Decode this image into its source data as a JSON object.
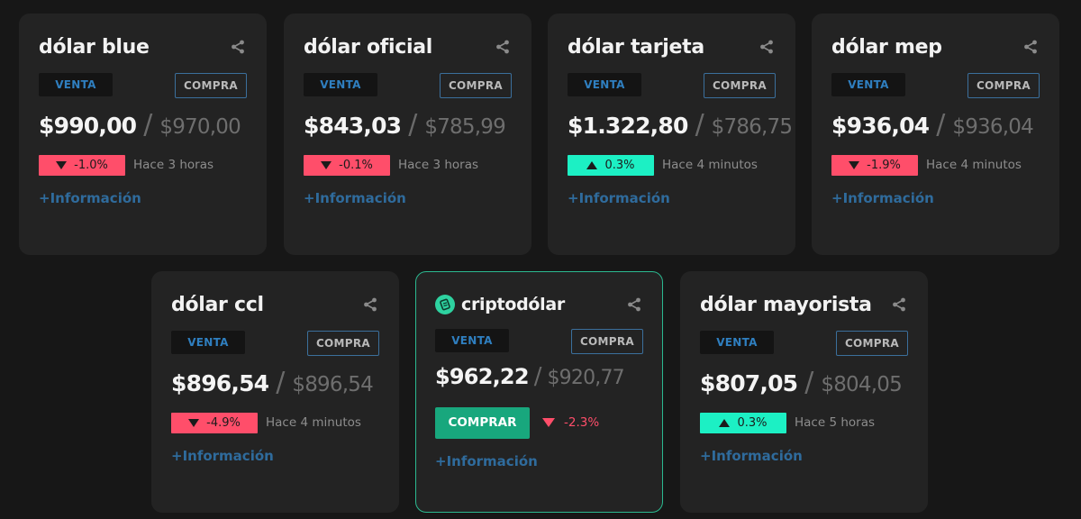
{
  "cards": [
    {
      "title": "dólar blue",
      "venta_label": "VENTA",
      "compra_label": "COMPRA",
      "venta": "$990,00",
      "compra": "$970,00",
      "change": "-1.0%",
      "direction": "down",
      "updated": "Hace 3 horas",
      "more": "+Información"
    },
    {
      "title": "dólar oficial",
      "venta_label": "VENTA",
      "compra_label": "COMPRA",
      "venta": "$843,03",
      "compra": "$785,99",
      "change": "-0.1%",
      "direction": "down",
      "updated": "Hace 3 horas",
      "more": "+Información"
    },
    {
      "title": "dólar tarjeta",
      "venta_label": "VENTA",
      "compra_label": "COMPRA",
      "venta": "$1.322,80",
      "compra": "$786,75",
      "change": "0.3%",
      "direction": "up",
      "updated": "Hace 4 minutos",
      "more": "+Información"
    },
    {
      "title": "dólar mep",
      "venta_label": "VENTA",
      "compra_label": "COMPRA",
      "venta": "$936,04",
      "compra": "$936,04",
      "change": "-1.9%",
      "direction": "down",
      "updated": "Hace 4 minutos",
      "more": "+Información"
    },
    {
      "title": "dólar ccl",
      "venta_label": "VENTA",
      "compra_label": "COMPRA",
      "venta": "$896,54",
      "compra": "$896,54",
      "change": "-4.9%",
      "direction": "down",
      "updated": "Hace 4 minutos",
      "more": "+Información"
    },
    {
      "title": "criptodólar",
      "venta_label": "VENTA",
      "compra_label": "COMPRA",
      "venta": "$962,22",
      "compra": "$920,77",
      "change": "-2.3%",
      "direction": "down",
      "buy_label": "COMPRAR",
      "more": "+Información"
    },
    {
      "title": "dólar mayorista",
      "venta_label": "VENTA",
      "compra_label": "COMPRA",
      "venta": "$807,05",
      "compra": "$804,05",
      "change": "0.3%",
      "direction": "up",
      "updated": "Hace 5 horas",
      "more": "+Información"
    }
  ],
  "icons": {
    "share": "share-icon",
    "arrow_down": "triangle-down-icon",
    "arrow_up": "triangle-up-icon",
    "crypto": "crypto-logo-icon"
  },
  "colors": {
    "background": "#171717",
    "card": "#232323",
    "negative": "#ff4e6a",
    "positive": "#1cf0c4",
    "link": "#2f6b9c",
    "venta_text": "#2f7fc0",
    "buy_button": "#18a77d",
    "crypto_border": "#2bb990"
  }
}
